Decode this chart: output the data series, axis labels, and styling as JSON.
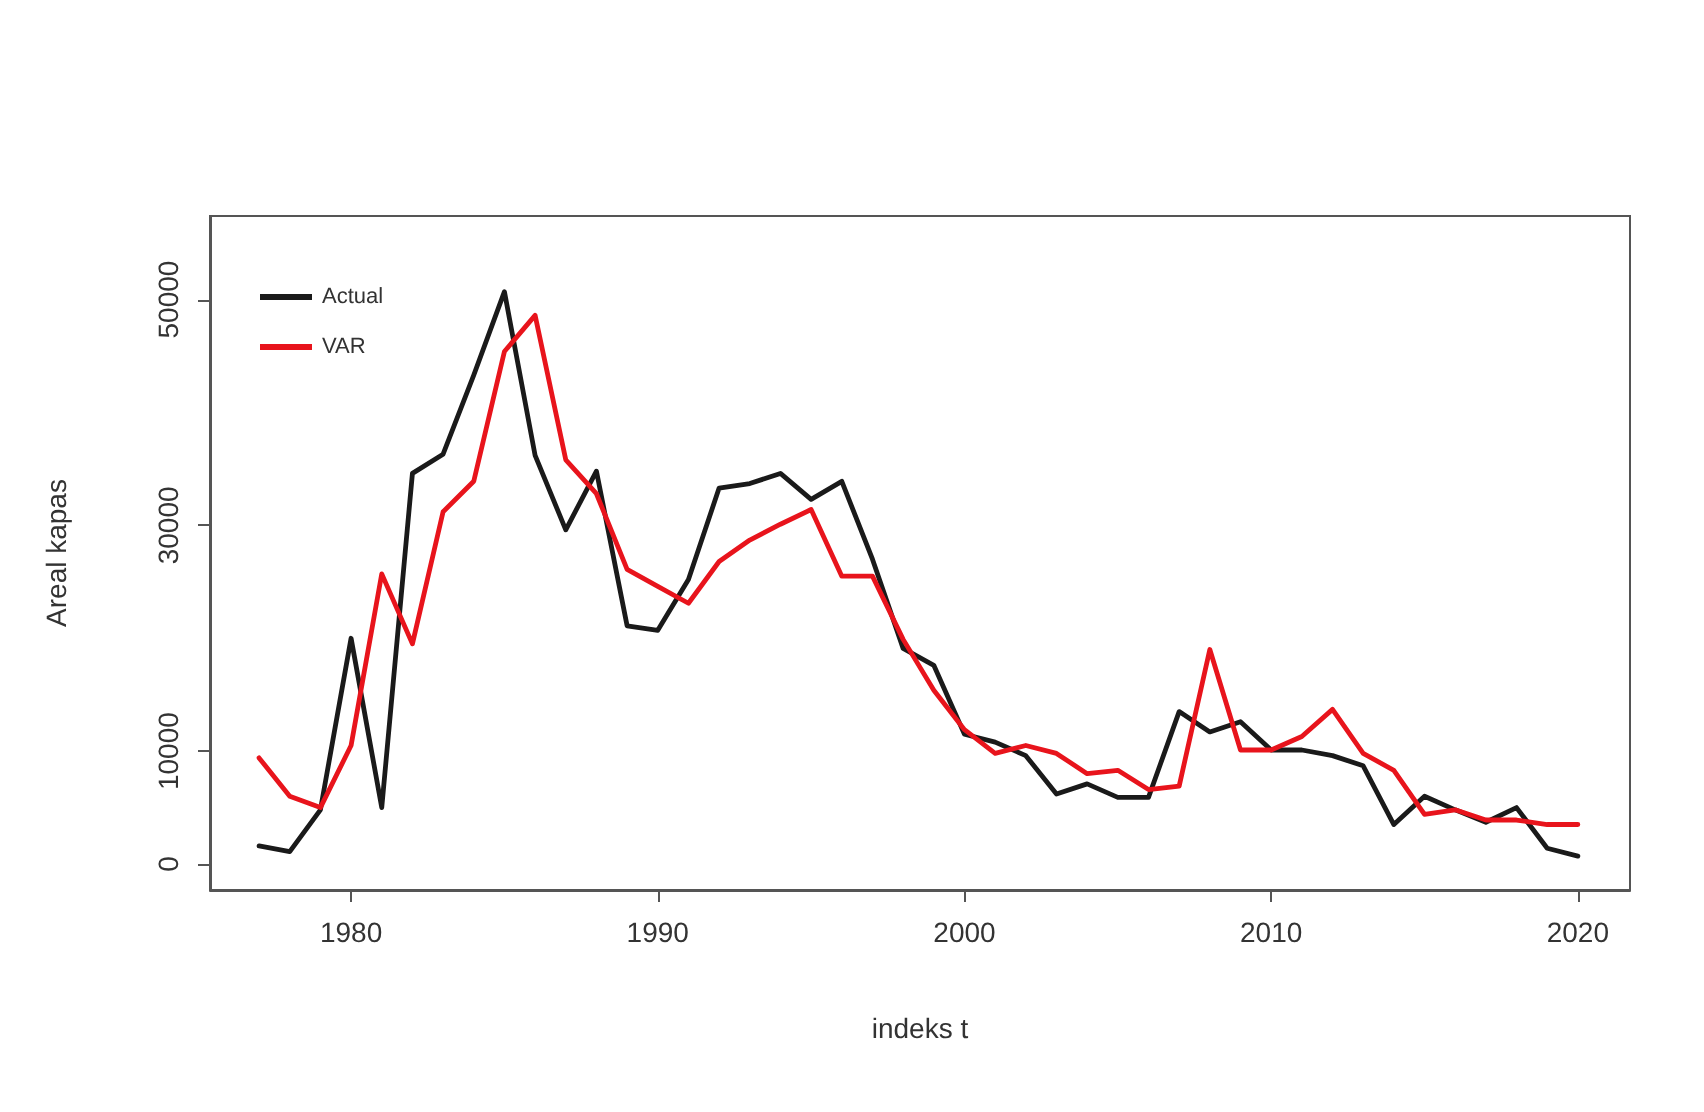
{
  "chart_data": {
    "type": "line",
    "xlabel": "indeks t",
    "ylabel": "Areal kapas",
    "x": [
      1977,
      1978,
      1979,
      1980,
      1981,
      1982,
      1983,
      1984,
      1985,
      1986,
      1987,
      1988,
      1989,
      1990,
      1991,
      1992,
      1993,
      1994,
      1995,
      1996,
      1997,
      1998,
      1999,
      2000,
      2001,
      2002,
      2003,
      2004,
      2005,
      2006,
      2007,
      2008,
      2009,
      2010,
      2011,
      2012,
      2013,
      2014,
      2015,
      2016,
      2017,
      2018,
      2019,
      2020
    ],
    "series": [
      {
        "name": "Actual",
        "color": "#1a1a1a",
        "values": [
          1600,
          1100,
          4800,
          20000,
          5000,
          34600,
          36300,
          43300,
          50700,
          36200,
          29600,
          34800,
          21100,
          20700,
          25200,
          33300,
          33700,
          34600,
          32300,
          33900,
          27000,
          19100,
          17600,
          11500,
          10800,
          9600,
          6200,
          7100,
          5900,
          5900,
          13500,
          11700,
          12600,
          10100,
          10100,
          9600,
          8700,
          3500,
          6000,
          4800,
          3700,
          5000,
          1400,
          700
        ]
      },
      {
        "name": "VAR",
        "color": "#e8141c",
        "values": [
          9400,
          6000,
          5000,
          10500,
          25700,
          19500,
          31200,
          33900,
          45400,
          48600,
          35800,
          32800,
          26100,
          24600,
          23100,
          26800,
          28700,
          30100,
          31400,
          25500,
          25500,
          19900,
          15400,
          11900,
          9800,
          10500,
          9800,
          8000,
          8300,
          6600,
          6900,
          19000,
          10100,
          10100,
          11300,
          13700,
          9800,
          8300,
          4400,
          4800,
          3900,
          3900,
          3500,
          3500
        ]
      }
    ],
    "xlim": [
      1975.4,
      2021.7
    ],
    "xticks": [
      1980,
      1990,
      2000,
      2010,
      2020
    ],
    "ylim": [
      -2300,
      57400
    ],
    "yticks": [
      0,
      10000,
      30000,
      50000
    ],
    "grid": false,
    "legend": "top left",
    "marker": "none",
    "line_style": "solid"
  }
}
